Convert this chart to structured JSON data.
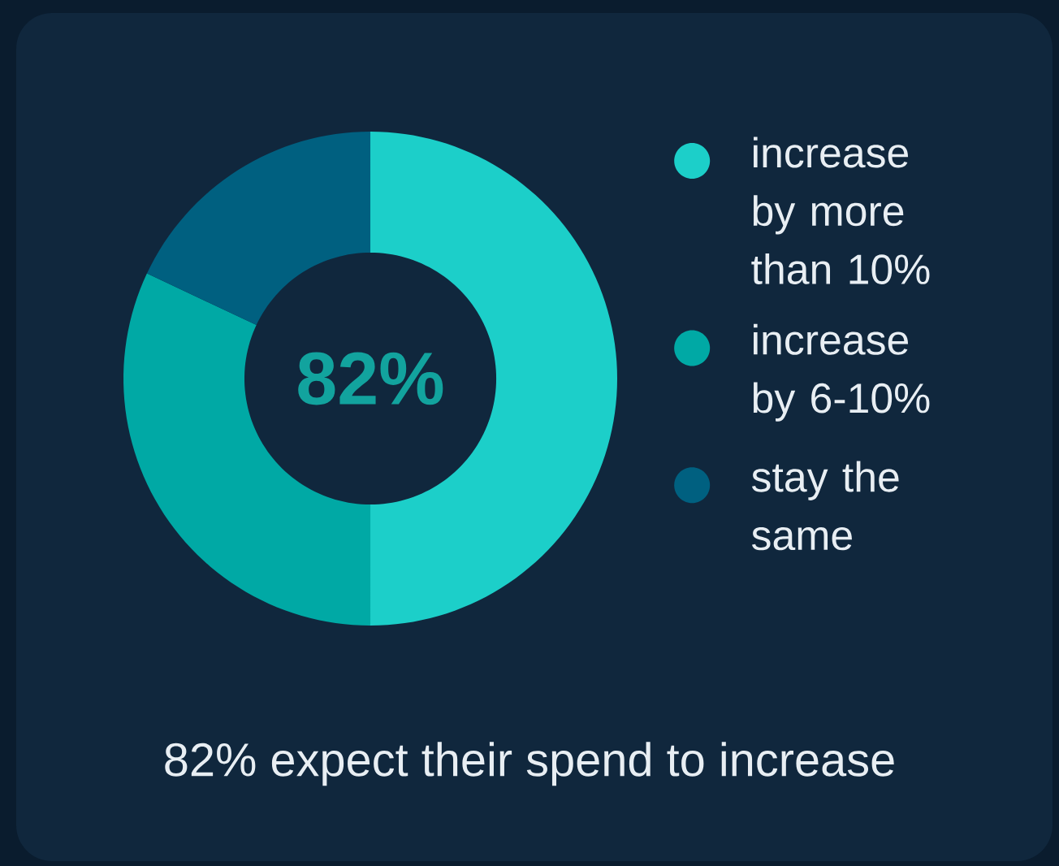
{
  "chart_data": {
    "type": "donut",
    "categories": [
      "increase by more than 10%",
      "increase by 6-10%",
      "stay the same"
    ],
    "values": [
      50,
      32,
      18
    ],
    "colors": [
      "#1ccfc9",
      "#00a9a5",
      "#006080"
    ],
    "legend": "right",
    "annotations": [
      "82%",
      "82% expect their spend to increase"
    ]
  }
}
